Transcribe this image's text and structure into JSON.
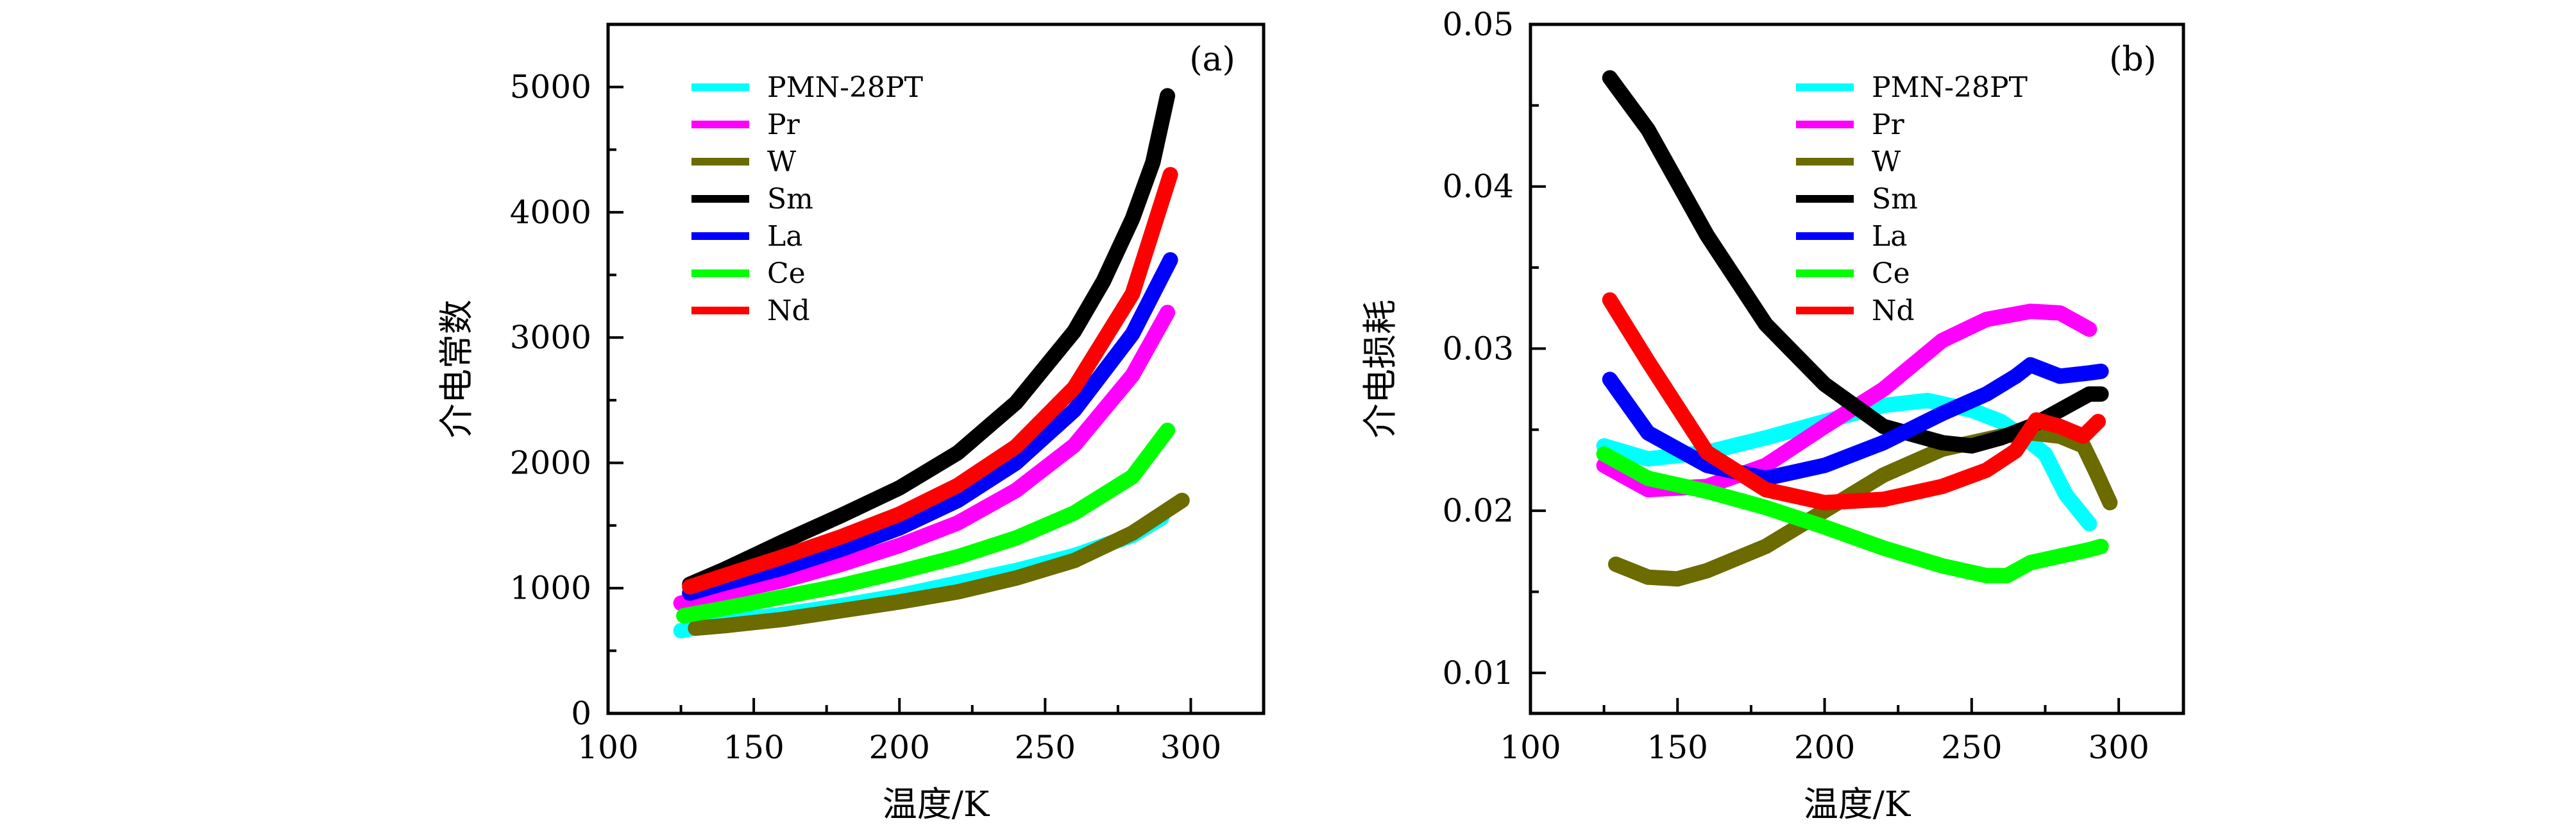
{
  "chart_data": [
    {
      "type": "line",
      "panel_label": "(a)",
      "xlabel": "温度/K",
      "ylabel": "介电常数",
      "xlim": [
        100,
        325
      ],
      "ylim": [
        0,
        5500
      ],
      "xticks": [
        100,
        150,
        200,
        250,
        300
      ],
      "yticks": [
        0,
        1000,
        2000,
        3000,
        4000,
        5000
      ],
      "x_tick_labels": [
        "100",
        "150",
        "200",
        "250",
        "300"
      ],
      "y_tick_labels": [
        "0",
        "1000",
        "2000",
        "3000",
        "4000",
        "5000"
      ],
      "legend_position": "top-left",
      "grid": false,
      "series": [
        {
          "name": "PMN-28PT",
          "color": "#00ffff",
          "x": [
            125,
            140,
            160,
            180,
            200,
            220,
            240,
            260,
            280,
            290
          ],
          "y": [
            660,
            730,
            790,
            860,
            940,
            1040,
            1140,
            1260,
            1420,
            1560
          ]
        },
        {
          "name": "Pr",
          "color": "#ff00ff",
          "x": [
            125,
            140,
            160,
            180,
            200,
            220,
            240,
            260,
            280,
            292
          ],
          "y": [
            880,
            960,
            1060,
            1190,
            1340,
            1520,
            1780,
            2140,
            2700,
            3200
          ]
        },
        {
          "name": "W",
          "color": "#6b6b00",
          "x": [
            130,
            140,
            160,
            180,
            200,
            220,
            240,
            260,
            280,
            297
          ],
          "y": [
            680,
            700,
            750,
            820,
            890,
            970,
            1080,
            1220,
            1440,
            1700
          ]
        },
        {
          "name": "Sm",
          "color": "#000000",
          "x": [
            128,
            140,
            160,
            180,
            200,
            220,
            240,
            260,
            270,
            280,
            287,
            292
          ],
          "y": [
            1030,
            1150,
            1370,
            1580,
            1800,
            2080,
            2480,
            3050,
            3450,
            3950,
            4400,
            4930
          ]
        },
        {
          "name": "La",
          "color": "#0000ff",
          "x": [
            128,
            140,
            160,
            180,
            200,
            220,
            240,
            260,
            280,
            293
          ],
          "y": [
            960,
            1040,
            1160,
            1310,
            1480,
            1700,
            2000,
            2420,
            3030,
            3620
          ]
        },
        {
          "name": "Ce",
          "color": "#00ff00",
          "x": [
            126,
            140,
            160,
            180,
            200,
            220,
            240,
            260,
            280,
            292
          ],
          "y": [
            780,
            840,
            930,
            1020,
            1130,
            1250,
            1400,
            1600,
            1890,
            2260
          ]
        },
        {
          "name": "Nd",
          "color": "#ff0000",
          "x": [
            128,
            140,
            160,
            180,
            200,
            220,
            240,
            260,
            280,
            293
          ],
          "y": [
            1010,
            1100,
            1250,
            1410,
            1590,
            1820,
            2130,
            2600,
            3350,
            4300
          ]
        }
      ]
    },
    {
      "type": "line",
      "panel_label": "(b)",
      "xlabel": "温度/K",
      "ylabel": "介电损耗",
      "xlim": [
        100,
        322
      ],
      "ylim": [
        0.0075,
        0.05
      ],
      "xticks": [
        100,
        150,
        200,
        250,
        300
      ],
      "yticks": [
        0.01,
        0.02,
        0.03,
        0.04,
        0.05
      ],
      "x_tick_labels": [
        "100",
        "150",
        "200",
        "250",
        "300"
      ],
      "y_tick_labels": [
        "0.01",
        "0.02",
        "0.03",
        "0.04",
        "0.05"
      ],
      "legend_position": "top-right",
      "grid": false,
      "series": [
        {
          "name": "PMN-28PT",
          "color": "#00ffff",
          "x": [
            125,
            140,
            160,
            180,
            200,
            220,
            235,
            250,
            260,
            268,
            275,
            282,
            290
          ],
          "y": [
            0.024,
            0.0232,
            0.0236,
            0.0245,
            0.0255,
            0.0265,
            0.0268,
            0.0262,
            0.0255,
            0.0245,
            0.0235,
            0.021,
            0.0192
          ]
        },
        {
          "name": "Pr",
          "color": "#ff00ff",
          "x": [
            125,
            140,
            160,
            180,
            200,
            220,
            230,
            240,
            255,
            270,
            280,
            290
          ],
          "y": [
            0.0228,
            0.0213,
            0.0215,
            0.0228,
            0.0252,
            0.0275,
            0.029,
            0.0305,
            0.0318,
            0.0323,
            0.0322,
            0.0312
          ]
        },
        {
          "name": "W",
          "color": "#6b6b00",
          "x": [
            129,
            140,
            150,
            160,
            180,
            200,
            220,
            240,
            260,
            270,
            280,
            288,
            292,
            297
          ],
          "y": [
            0.0167,
            0.0159,
            0.0158,
            0.0163,
            0.0178,
            0.02,
            0.0222,
            0.0238,
            0.0246,
            0.0248,
            0.0246,
            0.024,
            0.0225,
            0.0205
          ]
        },
        {
          "name": "Sm",
          "color": "#000000",
          "x": [
            127,
            140,
            160,
            180,
            200,
            220,
            240,
            250,
            260,
            270,
            280,
            290,
            294
          ],
          "y": [
            0.0467,
            0.0435,
            0.037,
            0.0315,
            0.0278,
            0.0252,
            0.0242,
            0.024,
            0.0245,
            0.0252,
            0.0262,
            0.0272,
            0.0272
          ]
        },
        {
          "name": "La",
          "color": "#0000ff",
          "x": [
            127,
            140,
            160,
            180,
            200,
            220,
            240,
            255,
            265,
            270,
            280,
            290,
            294
          ],
          "y": [
            0.0281,
            0.0248,
            0.0228,
            0.022,
            0.0228,
            0.0242,
            0.026,
            0.0272,
            0.0283,
            0.029,
            0.0283,
            0.0285,
            0.0286
          ]
        },
        {
          "name": "Ce",
          "color": "#00ff00",
          "x": [
            125,
            140,
            160,
            180,
            200,
            220,
            240,
            255,
            262,
            270,
            280,
            290,
            294
          ],
          "y": [
            0.0235,
            0.022,
            0.0212,
            0.0202,
            0.019,
            0.0177,
            0.0166,
            0.016,
            0.016,
            0.0168,
            0.0172,
            0.0176,
            0.0178
          ]
        },
        {
          "name": "Nd",
          "color": "#ff0000",
          "x": [
            127,
            140,
            160,
            180,
            200,
            220,
            240,
            255,
            265,
            272,
            280,
            288,
            293
          ],
          "y": [
            0.033,
            0.0292,
            0.0236,
            0.0213,
            0.0205,
            0.0207,
            0.0215,
            0.0225,
            0.0237,
            0.0256,
            0.0252,
            0.0246,
            0.0255
          ]
        }
      ]
    }
  ]
}
